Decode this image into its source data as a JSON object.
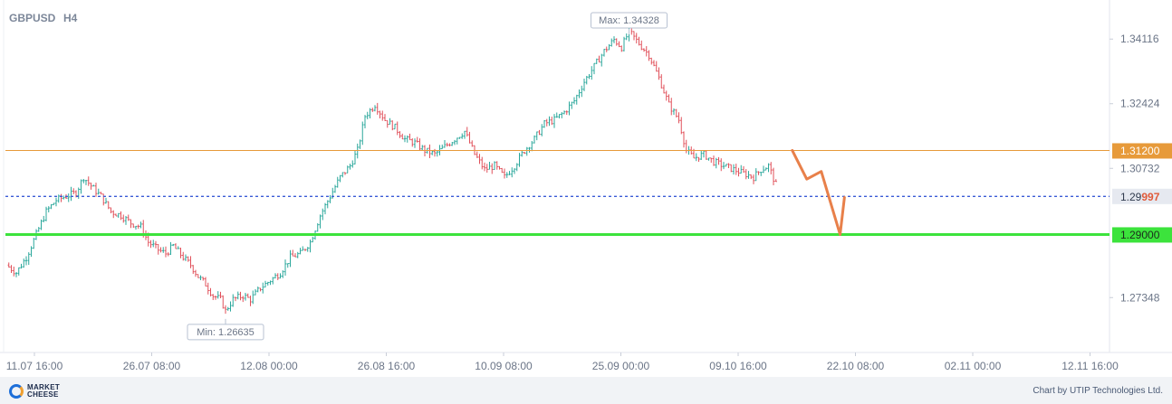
{
  "header": {
    "symbol": "GBPUSD",
    "timeframe": "H4"
  },
  "chart_data": {
    "type": "candlestick",
    "symbol": "GBPUSD",
    "timeframe": "H4",
    "x_tick_labels": [
      "11.07 16:00",
      "26.07 08:00",
      "12.08 00:00",
      "26.08 16:00",
      "10.09 08:00",
      "25.09 00:00",
      "09.10 16:00",
      "22.10 08:00",
      "02.11 00:00",
      "12.11 16:00"
    ],
    "y_tick_labels": [
      "1.34116",
      "1.32424",
      "1.30732",
      "1.27348"
    ],
    "y_ticks": [
      1.34116,
      1.32424,
      1.30732,
      1.27348
    ],
    "ylim": [
      1.261,
      1.3495
    ],
    "price_path": [
      [
        0,
        1.282
      ],
      [
        4,
        1.28
      ],
      [
        8,
        1.284
      ],
      [
        12,
        1.29
      ],
      [
        16,
        1.296
      ],
      [
        20,
        1.299
      ],
      [
        24,
        1.3
      ],
      [
        28,
        1.301
      ],
      [
        31,
        1.305
      ],
      [
        35,
        1.302
      ],
      [
        38,
        1.3
      ],
      [
        42,
        1.296
      ],
      [
        46,
        1.295
      ],
      [
        50,
        1.293
      ],
      [
        54,
        1.292
      ],
      [
        57,
        1.288
      ],
      [
        61,
        1.286
      ],
      [
        64,
        1.285
      ],
      [
        67,
        1.287
      ],
      [
        71,
        1.284
      ],
      [
        74,
        1.282
      ],
      [
        77,
        1.279
      ],
      [
        80,
        1.277
      ],
      [
        83,
        1.274
      ],
      [
        86,
        1.273
      ],
      [
        88,
        1.27
      ],
      [
        91,
        1.273
      ],
      [
        95,
        1.274
      ],
      [
        98,
        1.273
      ],
      [
        102,
        1.276
      ],
      [
        106,
        1.278
      ],
      [
        110,
        1.28
      ],
      [
        114,
        1.284
      ],
      [
        118,
        1.285
      ],
      [
        122,
        1.288
      ],
      [
        126,
        1.295
      ],
      [
        130,
        1.3
      ],
      [
        134,
        1.305
      ],
      [
        138,
        1.308
      ],
      [
        141,
        1.312
      ],
      [
        144,
        1.321
      ],
      [
        148,
        1.324
      ],
      [
        152,
        1.32
      ],
      [
        156,
        1.318
      ],
      [
        160,
        1.315
      ],
      [
        164,
        1.314
      ],
      [
        168,
        1.312
      ],
      [
        172,
        1.311
      ],
      [
        176,
        1.313
      ],
      [
        180,
        1.315
      ],
      [
        184,
        1.317
      ],
      [
        188,
        1.311
      ],
      [
        192,
        1.307
      ],
      [
        196,
        1.308
      ],
      [
        200,
        1.305
      ],
      [
        204,
        1.308
      ],
      [
        208,
        1.312
      ],
      [
        212,
        1.315
      ],
      [
        216,
        1.319
      ],
      [
        220,
        1.32
      ],
      [
        224,
        1.322
      ],
      [
        228,
        1.325
      ],
      [
        232,
        1.33
      ],
      [
        236,
        1.334
      ],
      [
        240,
        1.338
      ],
      [
        244,
        1.341
      ],
      [
        247,
        1.339
      ],
      [
        250,
        1.3432
      ],
      [
        254,
        1.34
      ],
      [
        258,
        1.337
      ],
      [
        262,
        1.331
      ],
      [
        266,
        1.324
      ],
      [
        270,
        1.32
      ],
      [
        273,
        1.312
      ],
      [
        276,
        1.31
      ],
      [
        280,
        1.311
      ],
      [
        284,
        1.309
      ],
      [
        288,
        1.308
      ],
      [
        292,
        1.307
      ],
      [
        296,
        1.306
      ],
      [
        300,
        1.305
      ],
      [
        303,
        1.307
      ],
      [
        306,
        1.308
      ],
      [
        309,
        1.303
      ]
    ],
    "max_label": "Max: 1.34328",
    "min_label": "Min: 1.26635",
    "levels": [
      {
        "label": "1.31200",
        "value": 1.312,
        "color": "#e79a3a"
      },
      {
        "label": "1.29000",
        "value": 1.29,
        "color": "#3ce33c"
      }
    ],
    "current_price": {
      "label_main": "1.29",
      "label_accent": "997",
      "value": 1.29997,
      "color": "#3b5bd6",
      "accent_color": "#e05a3a"
    },
    "forecast_arrow": {
      "color": "#e8804a",
      "points": [
        [
          1.312,
          0
        ],
        [
          1.3045,
          1
        ],
        [
          1.3065,
          2
        ],
        [
          1.29,
          3.3
        ],
        [
          1.2997,
          3.6
        ]
      ]
    }
  },
  "footer": {
    "logo_line1": "MARKET",
    "logo_line2": "CHEESE",
    "credit": "Chart by UTIP Technologies Ltd."
  }
}
